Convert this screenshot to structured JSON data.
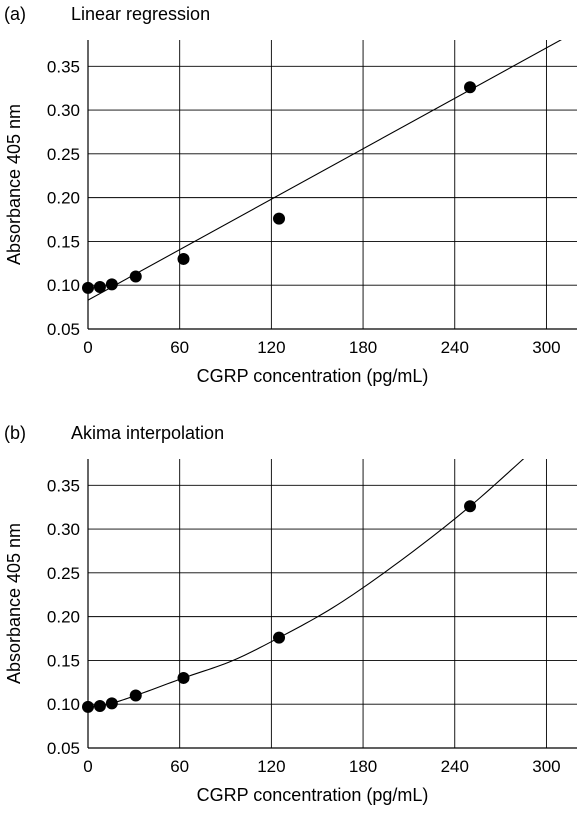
{
  "chart_data": [
    {
      "type": "scatter",
      "panel_label": "(a)",
      "title": "Linear regression",
      "xlabel": "CGRP concentration (pg/mL)",
      "ylabel": "Absorbance 405 nm",
      "xlim": [
        0,
        320
      ],
      "ylim": [
        0.05,
        0.38
      ],
      "xticks": [
        0,
        60,
        120,
        180,
        240,
        300
      ],
      "yticks": [
        0.05,
        0.1,
        0.15,
        0.2,
        0.25,
        0.3,
        0.35
      ],
      "ytick_labels": [
        "0.05",
        "0.10",
        "0.15",
        "0.20",
        "0.25",
        "0.30",
        "0.35"
      ],
      "grid": true,
      "series": [
        {
          "x": [
            0,
            7.8,
            15.6,
            31.25,
            62.5,
            125,
            250
          ],
          "y": [
            0.097,
            0.098,
            0.101,
            0.11,
            0.13,
            0.176,
            0.326
          ]
        }
      ],
      "fit": {
        "kind": "linear",
        "intercept": 0.083,
        "slope": 0.00096
      }
    },
    {
      "type": "scatter",
      "panel_label": "(b)",
      "title": "Akima interpolation",
      "xlabel": "CGRP concentration (pg/mL)",
      "ylabel": "Absorbance 405 nm",
      "xlim": [
        0,
        320
      ],
      "ylim": [
        0.05,
        0.38
      ],
      "xticks": [
        0,
        60,
        120,
        180,
        240,
        300
      ],
      "yticks": [
        0.05,
        0.1,
        0.15,
        0.2,
        0.25,
        0.3,
        0.35
      ],
      "ytick_labels": [
        "0.05",
        "0.10",
        "0.15",
        "0.20",
        "0.25",
        "0.30",
        "0.35"
      ],
      "grid": true,
      "series": [
        {
          "x": [
            0,
            7.8,
            15.6,
            31.25,
            62.5,
            125,
            250
          ],
          "y": [
            0.097,
            0.098,
            0.101,
            0.11,
            0.13,
            0.176,
            0.326
          ]
        }
      ],
      "fit": {
        "kind": "akima",
        "x": [
          0,
          7.8,
          15.6,
          31.25,
          62.5,
          95,
          125,
          160,
          200,
          250,
          290
        ],
        "y": [
          0.097,
          0.098,
          0.101,
          0.11,
          0.13,
          0.15,
          0.176,
          0.21,
          0.258,
          0.326,
          0.388
        ]
      }
    }
  ]
}
